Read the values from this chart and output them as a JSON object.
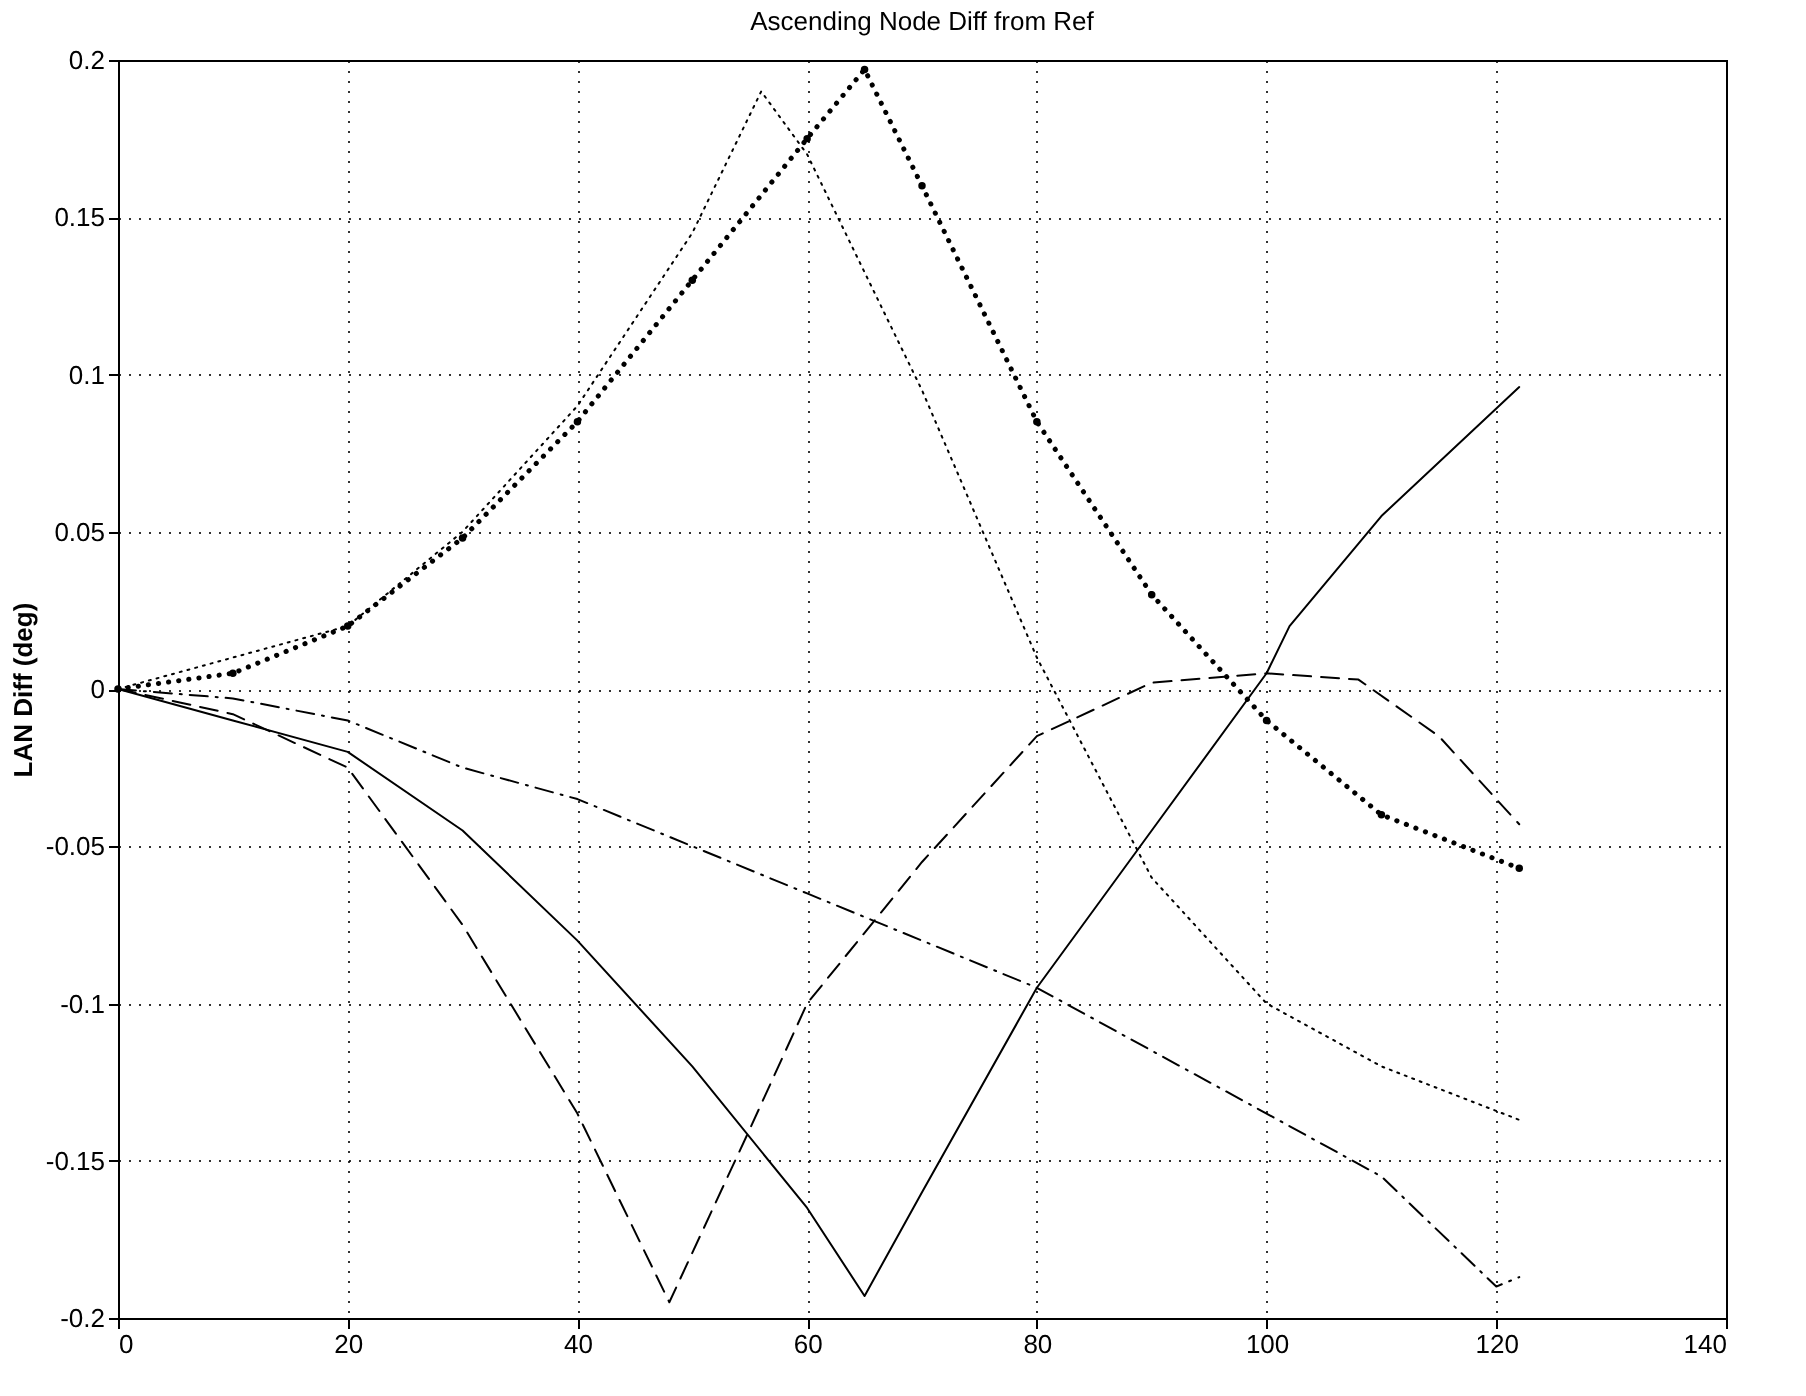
{
  "chart_data": {
    "type": "line",
    "title": "Ascending Node Diff from Ref",
    "ylabel": "LAN Diff (deg)",
    "xlim": [
      0,
      140
    ],
    "xticks": [
      0,
      20,
      40,
      60,
      80,
      100,
      120,
      140
    ],
    "ylim": [
      -0.2,
      0.2
    ],
    "yticks": [
      -0.2,
      -0.15,
      -0.1,
      -0.05,
      0,
      0.05,
      0.1,
      0.15,
      0.2
    ],
    "grid": true,
    "series": [
      {
        "color": "#000000",
        "line_style": "solid",
        "x": [
          0,
          10,
          20,
          30,
          40,
          50,
          60,
          65,
          70,
          80,
          90,
          100,
          102,
          110,
          122
        ],
        "values": [
          0,
          -0.01,
          -0.02,
          -0.045,
          -0.08,
          -0.12,
          -0.165,
          -0.193,
          -0.16,
          -0.095,
          -0.045,
          0.005,
          0.02,
          0.055,
          0.096
        ]
      },
      {
        "color": "#000000",
        "line_style": "dotted",
        "x": [
          0,
          20,
          30,
          40,
          50,
          56,
          60,
          70,
          80,
          90,
          100,
          110,
          122
        ],
        "values": [
          0,
          0.02,
          0.05,
          0.09,
          0.145,
          0.19,
          0.17,
          0.095,
          0.01,
          -0.06,
          -0.1,
          -0.12,
          -0.137
        ]
      },
      {
        "color": "#000000",
        "line_style": "dotted",
        "marker": "circle",
        "x": [
          0,
          10,
          20,
          30,
          40,
          50,
          60,
          65,
          70,
          80,
          90,
          100,
          110,
          122
        ],
        "values": [
          0,
          0.005,
          0.02,
          0.048,
          0.085,
          0.13,
          0.175,
          0.197,
          0.16,
          0.085,
          0.03,
          -0.01,
          -0.04,
          -0.057
        ]
      },
      {
        "color": "#000000",
        "line_style": "dashed",
        "x": [
          0,
          10,
          20,
          30,
          40,
          48,
          55,
          60,
          70,
          80,
          90,
          100,
          108,
          115,
          122
        ],
        "values": [
          0,
          -0.008,
          -0.025,
          -0.075,
          -0.135,
          -0.195,
          -0.14,
          -0.1,
          -0.055,
          -0.015,
          0.002,
          0.005,
          0.003,
          -0.015,
          -0.043
        ]
      },
      {
        "color": "#000000",
        "line_style": "dashdot",
        "x": [
          0,
          10,
          20,
          30,
          40,
          50,
          60,
          70,
          80,
          90,
          100,
          110,
          120,
          122
        ],
        "values": [
          0,
          -0.003,
          -0.01,
          -0.025,
          -0.035,
          -0.05,
          -0.065,
          -0.08,
          -0.095,
          -0.115,
          -0.135,
          -0.155,
          -0.19,
          -0.187
        ]
      }
    ]
  }
}
